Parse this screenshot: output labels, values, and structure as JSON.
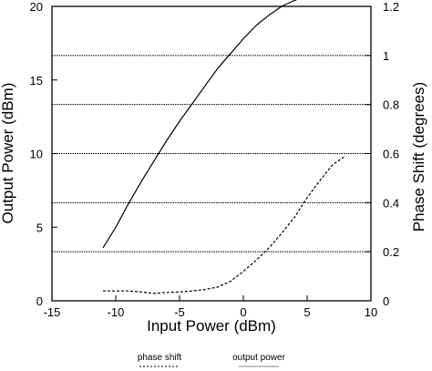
{
  "chart_data": {
    "type": "line",
    "xlabel": "Input Power (dBm)",
    "ylabel_left": "Output Power (dBm)",
    "ylabel_right": "Phase Shift (degrees)",
    "xlim": [
      -15,
      10
    ],
    "ylim_left": [
      0,
      20
    ],
    "ylim_right": [
      0,
      1.2
    ],
    "x_ticks": [
      "-15",
      "-10",
      "-5",
      "0",
      "5",
      "10"
    ],
    "y_left_ticks": [
      "0",
      "5",
      "10",
      "15",
      "20"
    ],
    "y_right_ticks": [
      "0",
      "0.2",
      "0.4",
      "0.6",
      "0.8",
      "1",
      "1.2"
    ],
    "grid": "horizontal, dashed, at right-axis ticks",
    "legend": "bottom",
    "series": [
      {
        "name": "output power",
        "axis": "left",
        "style": "solid",
        "x": [
          -11,
          -10,
          -9,
          -8,
          -7,
          -6,
          -5,
          -4,
          -3,
          -2,
          -1,
          0,
          1,
          2,
          3,
          4,
          5,
          6,
          7,
          8
        ],
        "y": [
          3.6,
          5.0,
          6.6,
          8.1,
          9.5,
          10.9,
          12.2,
          13.4,
          14.6,
          15.8,
          16.8,
          17.8,
          18.7,
          19.4,
          20.0,
          20.4,
          20.7,
          20.9,
          21.0,
          21.2
        ]
      },
      {
        "name": "phase shift",
        "axis": "right",
        "style": "dashed",
        "x": [
          -11,
          -10,
          -9,
          -8,
          -7,
          -6,
          -5,
          -4,
          -3,
          -2,
          -1,
          0,
          1,
          2,
          3,
          4,
          5,
          6,
          7,
          8
        ],
        "y": [
          0.04,
          0.04,
          0.04,
          0.036,
          0.03,
          0.034,
          0.036,
          0.04,
          0.046,
          0.056,
          0.08,
          0.12,
          0.165,
          0.215,
          0.275,
          0.34,
          0.42,
          0.49,
          0.555,
          0.59
        ]
      }
    ]
  },
  "legend": {
    "phase_shift_label": "phase shift",
    "output_power_label": "output power"
  }
}
